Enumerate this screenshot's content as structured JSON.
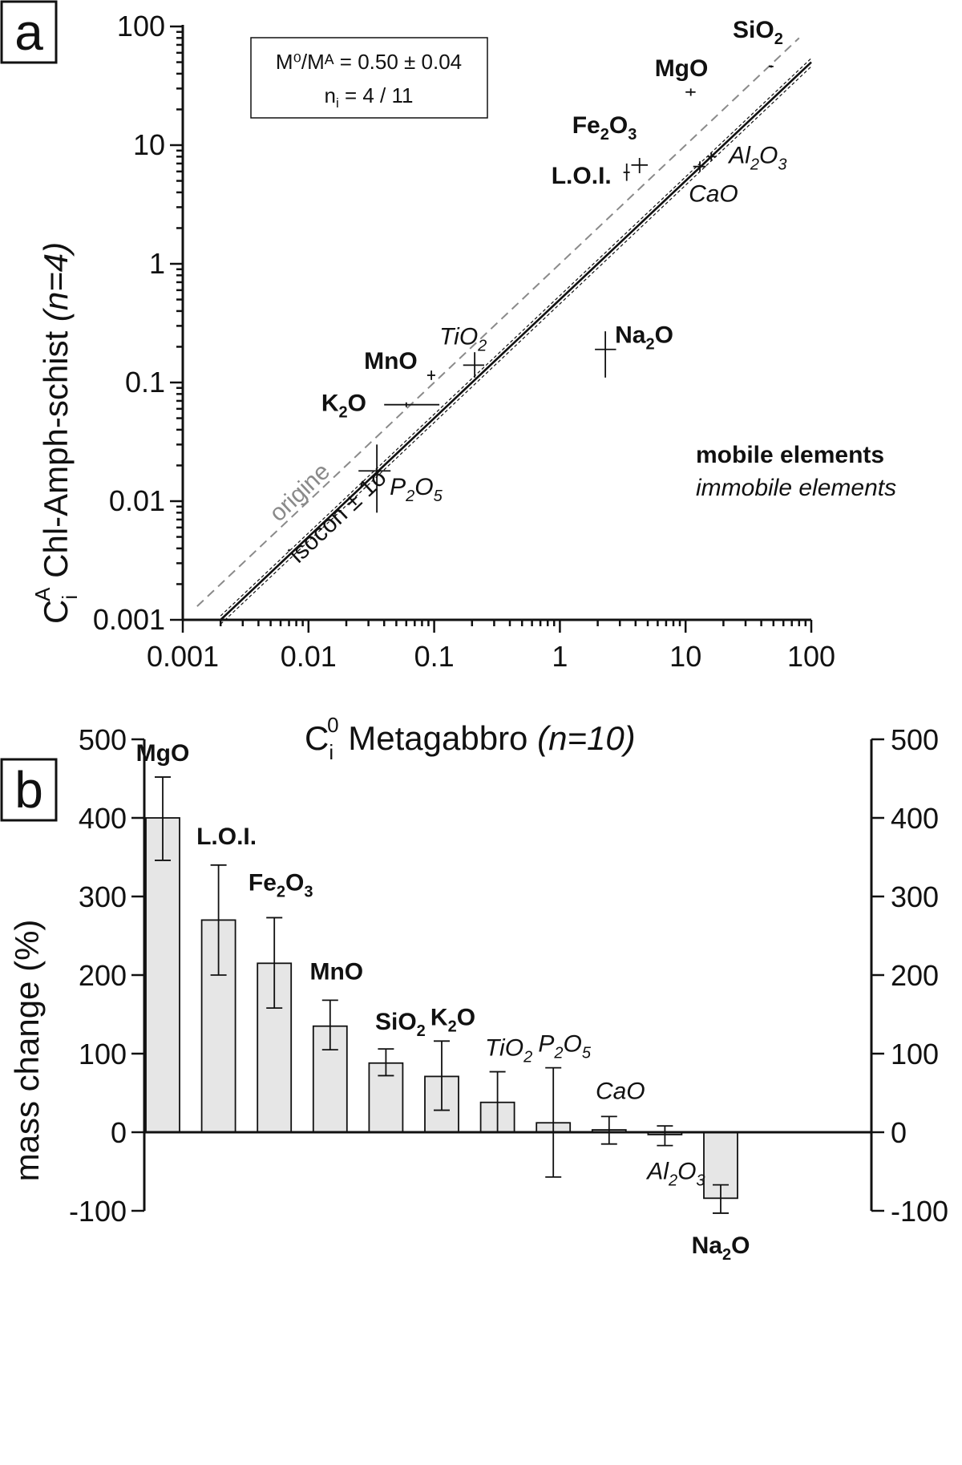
{
  "panel_a": {
    "letter": "a",
    "box_line1": "M⁰/Mᴬ = 0.50 ± 0.04",
    "box_line2_pre": "n",
    "box_line2_sub": "i",
    "box_line2_post": " = 4 / 11",
    "ylabel_main": "C",
    "ylabel_sub": "i",
    "ylabel_sup": "A",
    "ylabel_text": "  Chl-Amph-schist ",
    "ylabel_italic": "(n=4)",
    "xlabel_main": "C",
    "xlabel_sub": "i",
    "xlabel_sup": "0",
    "xlabel_text": "  Metagabbro ",
    "xlabel_italic": "(n=10)",
    "origin_label": "origine",
    "isocon_label": "isocon ± 1σ",
    "legend_mobile": "mobile elements",
    "legend_immobile": "immobile elements",
    "tick_labels": [
      "0.001",
      "0.01",
      "0.1",
      "1",
      "10",
      "100"
    ]
  },
  "panel_b": {
    "letter": "b",
    "ylabel": "mass change (%)",
    "tick_labels": [
      "500",
      "400",
      "300",
      "200",
      "100",
      "0",
      "-100"
    ]
  },
  "chart_data": [
    {
      "type": "scatter",
      "xscale": "log",
      "yscale": "log",
      "xlim": [
        0.001,
        100
      ],
      "ylim": [
        0.001,
        100
      ],
      "xticks": [
        0.001,
        0.01,
        0.1,
        1,
        10,
        100
      ],
      "yticks": [
        0.001,
        0.01,
        0.1,
        1,
        10,
        100
      ],
      "reference_line": {
        "name": "origine",
        "slope": 1
      },
      "isocon": {
        "name": "isocon ± 1σ",
        "slope": 0.5,
        "band": 0.04
      },
      "points": [
        {
          "element": "SiO2",
          "class": "mobile",
          "x": 48,
          "y": 46,
          "xerr": [
            46,
            50
          ],
          "yerr": [
            45,
            47
          ]
        },
        {
          "element": "MgO",
          "class": "mobile",
          "x": 11,
          "y": 28,
          "xerr": [
            10,
            12
          ],
          "yerr": [
            26,
            30
          ]
        },
        {
          "element": "Fe2O3",
          "class": "mobile",
          "x": 4.3,
          "y": 6.8,
          "xerr": [
            3.7,
            5.0
          ],
          "yerr": [
            5.8,
            7.8
          ]
        },
        {
          "element": "L.O.I.",
          "class": "mobile",
          "x": 3.4,
          "y": 5.9,
          "xerr": [
            3.2,
            3.6
          ],
          "yerr": [
            5.0,
            7.0
          ]
        },
        {
          "element": "Al2O3",
          "class": "immobile",
          "x": 16,
          "y": 8.0,
          "xerr": [
            15,
            17.5
          ],
          "yerr": [
            7.4,
            8.6
          ]
        },
        {
          "element": "CaO",
          "class": "immobile",
          "x": 13,
          "y": 6.6,
          "xerr": [
            11.5,
            14.5
          ],
          "yerr": [
            6.0,
            7.3
          ]
        },
        {
          "element": "Na2O",
          "class": "mobile",
          "x": 2.3,
          "y": 0.19,
          "xerr": [
            1.9,
            2.8
          ],
          "yerr": [
            0.11,
            0.27
          ]
        },
        {
          "element": "TiO2",
          "class": "immobile",
          "x": 0.21,
          "y": 0.14,
          "xerr": [
            0.17,
            0.25
          ],
          "yerr": [
            0.11,
            0.18
          ]
        },
        {
          "element": "MnO",
          "class": "mobile",
          "x": 0.095,
          "y": 0.115,
          "xerr": [
            0.088,
            0.102
          ],
          "yerr": [
            0.105,
            0.126
          ]
        },
        {
          "element": "K2O",
          "class": "mobile",
          "x": 0.06,
          "y": 0.065,
          "xerr": [
            0.04,
            0.11
          ],
          "yerr": [
            0.062,
            0.068
          ]
        },
        {
          "element": "P2O5",
          "class": "immobile",
          "x": 0.035,
          "y": 0.018,
          "xerr": [
            0.025,
            0.045
          ],
          "yerr": [
            0.008,
            0.03
          ]
        }
      ],
      "xlabel": "Ci0 Metagabbro (n=10)",
      "ylabel": "CiA Chl-Amph-schist (n=4)"
    },
    {
      "type": "bar",
      "ylabel": "mass change (%)",
      "ylim": [
        -100,
        500
      ],
      "yticks": [
        500,
        400,
        300,
        200,
        100,
        0,
        -100
      ],
      "categories": [
        "MgO",
        "L.O.I.",
        "Fe2O3",
        "MnO",
        "SiO2",
        "K2O",
        "TiO2",
        "P2O5",
        "CaO",
        "Al2O3",
        "Na2O"
      ],
      "classes": [
        "mobile",
        "mobile",
        "mobile",
        "mobile",
        "mobile",
        "mobile",
        "immobile",
        "immobile",
        "immobile",
        "immobile",
        "mobile"
      ],
      "values": [
        400,
        270,
        215,
        135,
        88,
        71,
        38,
        12,
        3,
        -3,
        -84
      ],
      "err_low": [
        346,
        200,
        158,
        105,
        72,
        28,
        0,
        -57,
        -15,
        -17,
        -103
      ],
      "err_high": [
        452,
        340,
        273,
        168,
        106,
        116,
        77,
        82,
        20,
        8,
        -67
      ]
    }
  ]
}
